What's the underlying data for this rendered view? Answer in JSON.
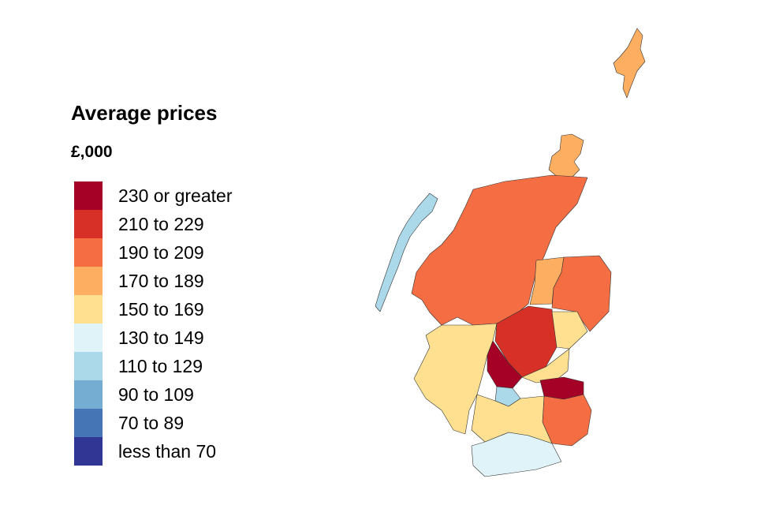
{
  "legend": {
    "title": "Average prices",
    "unit": "£,000",
    "items": [
      {
        "label": "230 or greater",
        "color": "#a50026"
      },
      {
        "label": "210 to 229",
        "color": "#d73027"
      },
      {
        "label": "190 to 209",
        "color": "#f46d43"
      },
      {
        "label": "170 to 189",
        "color": "#fdae61"
      },
      {
        "label": "150 to 169",
        "color": "#fee090"
      },
      {
        "label": "130 to 149",
        "color": "#e0f3f8"
      },
      {
        "label": "110 to 129",
        "color": "#abd9e9"
      },
      {
        "label": "90 to 109",
        "color": "#74add1"
      },
      {
        "label": "70 to 89",
        "color": "#4575b4"
      },
      {
        "label": "less than 70",
        "color": "#313695"
      }
    ]
  }
}
